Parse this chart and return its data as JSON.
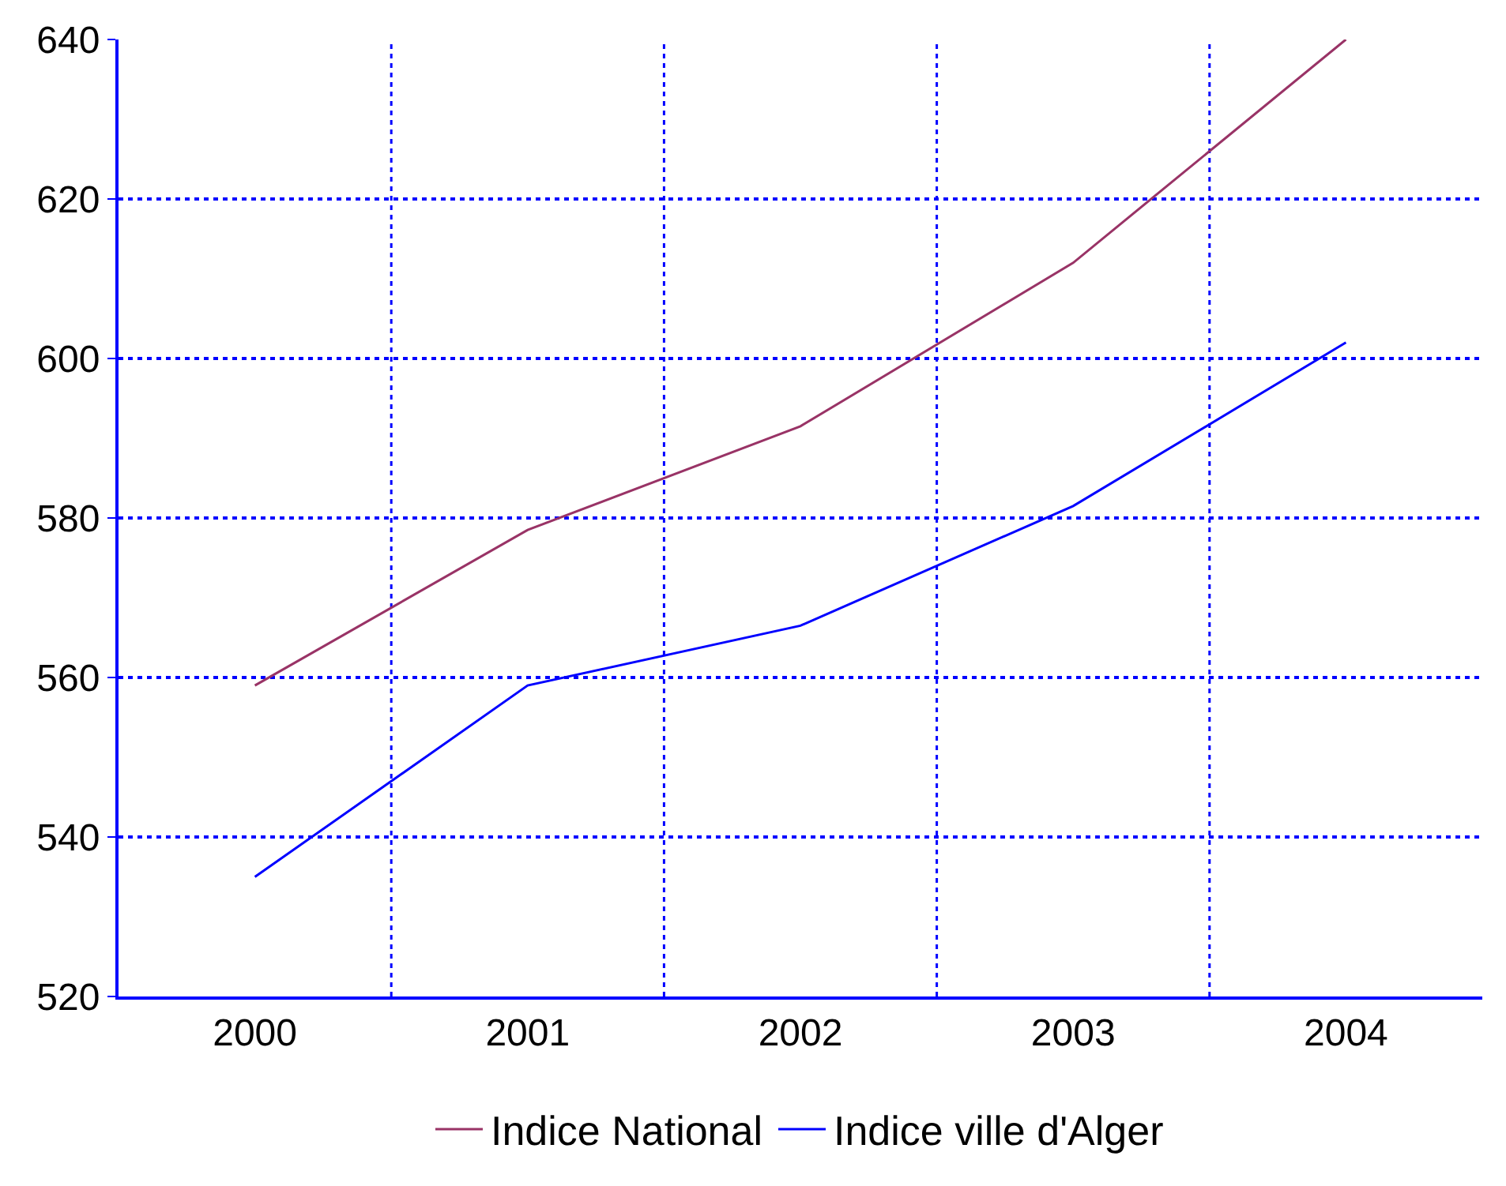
{
  "chart_data": {
    "type": "line",
    "categories": [
      "2000",
      "2001",
      "2002",
      "2003",
      "2004"
    ],
    "series": [
      {
        "name": "Indice National",
        "color": "#993366",
        "values": [
          559,
          578.5,
          591.5,
          612,
          640
        ]
      },
      {
        "name": "Indice ville d'Alger",
        "color": "#0000ff",
        "values": [
          535,
          559,
          566.5,
          581.5,
          602
        ]
      }
    ],
    "ylim": [
      520,
      640
    ],
    "yticks": [
      520,
      540,
      560,
      580,
      600,
      620,
      640
    ],
    "grid": true,
    "legend": "bottom",
    "marker": "none",
    "line_style": "solid"
  }
}
